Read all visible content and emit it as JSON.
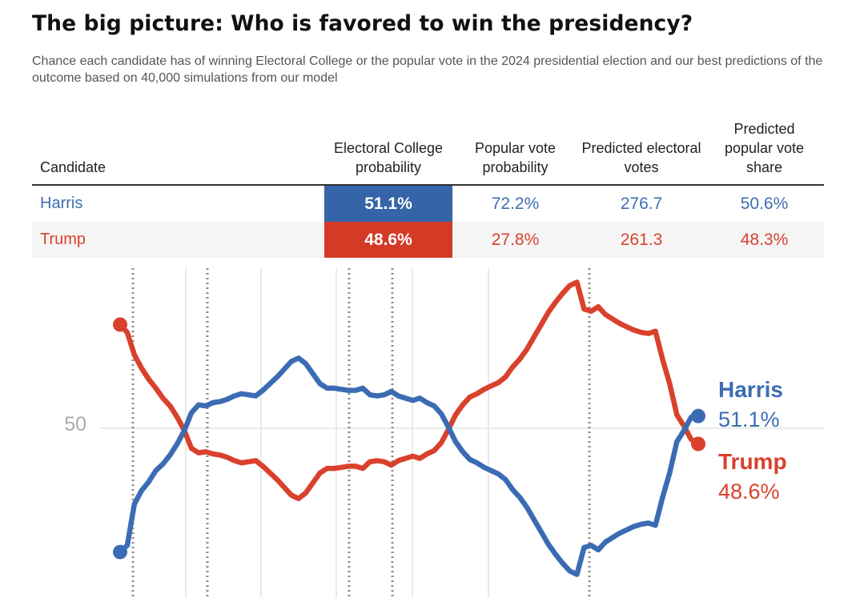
{
  "title": "The big picture: Who is favored to win the presidency?",
  "subtitle": "Chance each candidate has of winning Electoral College or the popular vote in the 2024 presidential election and our best predictions of the outcome based on 40,000 simulations from our model",
  "table": {
    "headers": {
      "candidate": "Candidate",
      "ec_prob": "Electoral College probability",
      "pv_prob": "Popular vote probability",
      "pred_ev": "Predicted electoral votes",
      "pred_pv": "Predicted popular vote share"
    },
    "rows": [
      {
        "candidate": "Harris",
        "ec_prob": "51.1%",
        "pv_prob": "72.2%",
        "pred_ev": "276.7",
        "pred_pv": "50.6%"
      },
      {
        "candidate": "Trump",
        "ec_prob": "48.6%",
        "pv_prob": "27.8%",
        "pred_ev": "261.3",
        "pred_pv": "48.3%"
      }
    ]
  },
  "colors": {
    "harris": "#3b6cb3",
    "trump": "#d9412c",
    "harris_cell": "#3565a8",
    "trump_cell": "#d43b27"
  },
  "chart_data": {
    "type": "line",
    "title": "",
    "xlabel": "",
    "ylabel": "",
    "y_ticks": [
      "50"
    ],
    "ylim": [
      36,
      64
    ],
    "grid": true,
    "legend": "end-labels-right",
    "series": [
      {
        "name": "Harris",
        "label": "Harris",
        "end_label": "51.1%",
        "values": [
          38.9,
          39.5,
          43.2,
          44.4,
          45.2,
          46.2,
          46.8,
          47.6,
          48.6,
          49.8,
          51.4,
          52.1,
          52.0,
          52.3,
          52.4,
          52.6,
          52.9,
          53.1,
          53.0,
          52.9,
          53.4,
          54.0,
          54.6,
          55.3,
          56.0,
          56.3,
          55.8,
          54.9,
          54.0,
          53.6,
          53.6,
          53.5,
          53.4,
          53.4,
          53.6,
          53.0,
          52.9,
          53.0,
          53.3,
          52.9,
          52.7,
          52.5,
          52.7,
          52.3,
          52.0,
          51.3,
          50.1,
          48.8,
          47.9,
          47.2,
          46.9,
          46.5,
          46.2,
          45.9,
          45.4,
          44.5,
          43.8,
          42.9,
          41.8,
          40.7,
          39.6,
          38.7,
          37.9,
          37.2,
          36.9,
          39.3,
          39.5,
          39.1,
          39.8,
          40.2,
          40.6,
          40.9,
          41.2,
          41.4,
          41.5,
          41.3,
          43.8,
          46.0,
          48.8,
          49.8,
          51.0,
          51.1
        ]
      },
      {
        "name": "Trump",
        "label": "Trump",
        "end_label": "48.6%",
        "values": [
          59.3,
          58.6,
          56.6,
          55.4,
          54.4,
          53.6,
          52.7,
          52.0,
          51.0,
          49.8,
          48.2,
          47.8,
          47.9,
          47.7,
          47.6,
          47.4,
          47.1,
          46.9,
          47.0,
          47.1,
          46.6,
          46.0,
          45.4,
          44.7,
          44.0,
          43.7,
          44.2,
          45.1,
          46.0,
          46.4,
          46.4,
          46.5,
          46.6,
          46.6,
          46.4,
          47.0,
          47.1,
          47.0,
          46.7,
          47.1,
          47.3,
          47.5,
          47.3,
          47.7,
          48.0,
          48.7,
          49.9,
          51.2,
          52.1,
          52.8,
          53.1,
          53.5,
          53.8,
          54.1,
          54.6,
          55.5,
          56.2,
          57.1,
          58.2,
          59.3,
          60.4,
          61.3,
          62.1,
          62.8,
          63.1,
          60.7,
          60.5,
          60.9,
          60.2,
          59.8,
          59.4,
          59.1,
          58.8,
          58.6,
          58.5,
          58.7,
          56.2,
          54.0,
          51.2,
          50.2,
          49.0,
          48.6
        ]
      }
    ],
    "dotted_event_markers": 5,
    "solid_month_gridlines": 5
  }
}
